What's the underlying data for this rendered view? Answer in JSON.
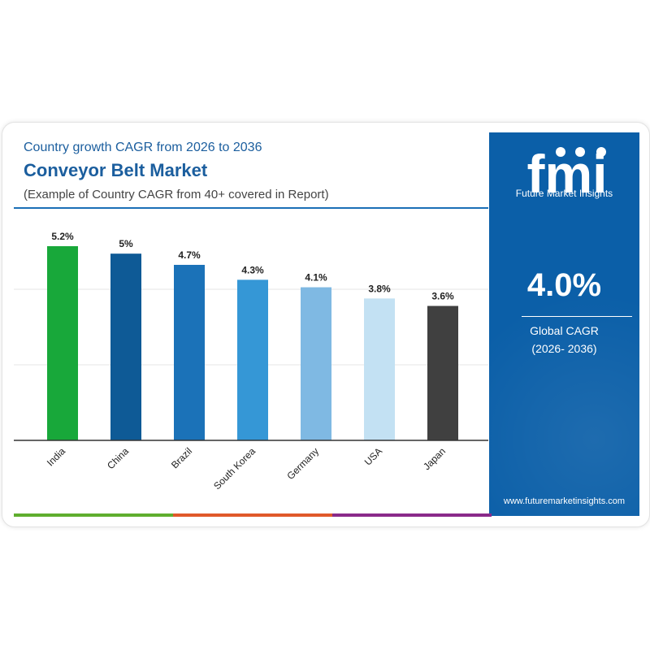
{
  "header": {
    "subtitle_top": "Country growth CAGR from 2026 to 2036",
    "title": "Conveyor Belt Market",
    "subtitle": "(Example of Country CAGR from 40+ covered in Report)"
  },
  "brand": {
    "logo_text": "fmi",
    "logo_tagline": "Future Market Insights",
    "website": "www.futuremarketinsights.com",
    "panel_color": "#0b5fa8"
  },
  "summary": {
    "value": "4.0%",
    "label": "Global CAGR",
    "period": "(2026- 2036)"
  },
  "chart_data": {
    "type": "bar",
    "categories": [
      "India",
      "China",
      "Brazil",
      "South Korea",
      "Germany",
      "USA",
      "Japan"
    ],
    "values": [
      5.2,
      5.0,
      4.7,
      4.3,
      4.1,
      3.8,
      3.6
    ],
    "data_labels": [
      "5.2%",
      "5%",
      "4.7%",
      "4.3%",
      "4.1%",
      "3.8%",
      "3.6%"
    ],
    "colors": [
      "#18a83a",
      "#0e5a96",
      "#1b72b8",
      "#3597d6",
      "#7fb9e3",
      "#c3e1f3",
      "#404040"
    ],
    "ylim": [
      0,
      5.2
    ],
    "grid": true,
    "title": "",
    "xlabel": "",
    "ylabel": ""
  },
  "footer_colors": [
    "#5fae2e",
    "#e0592a",
    "#8a2a8a"
  ]
}
